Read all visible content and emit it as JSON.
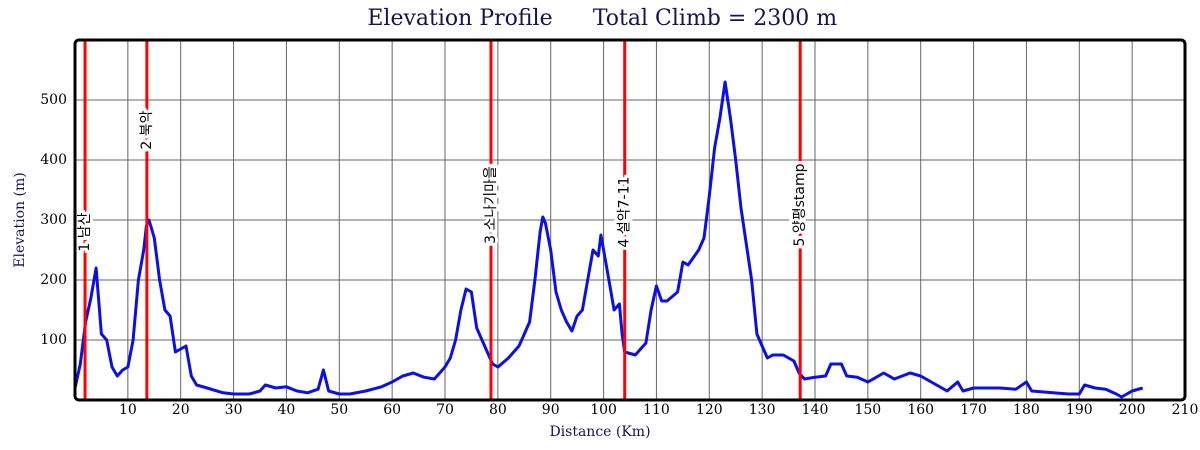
{
  "chart_data": {
    "type": "line",
    "title": "Elevation Profile",
    "subtitle": "Total Climb = 2300 m",
    "x_label": "Distance (Km)",
    "y_label": "Elevation (m)",
    "color": "#0a10e6",
    "marker_color": "#ff0000",
    "grid": true,
    "xlim": [
      0,
      210
    ],
    "ylim": [
      0,
      600
    ],
    "xticks": [
      10,
      20,
      30,
      40,
      50,
      60,
      70,
      80,
      90,
      100,
      110,
      120,
      130,
      140,
      150,
      160,
      170,
      180,
      190,
      200,
      210
    ],
    "yticks": [
      100,
      200,
      300,
      400,
      500
    ],
    "markers": [
      {
        "x": 1.9,
        "label": "1 남산"
      },
      {
        "x": 13.6,
        "label": "2 북악"
      },
      {
        "x": 78.7,
        "label": "3 소나기마을"
      },
      {
        "x": 104,
        "label": "4 설악7-11"
      },
      {
        "x": 137.2,
        "label": "5 양평stamp"
      }
    ],
    "x": [
      0,
      1,
      2,
      3,
      4,
      5,
      6,
      7,
      8,
      9,
      10,
      11,
      12,
      13,
      13.5,
      14,
      15,
      16,
      17,
      18,
      19,
      20,
      21,
      22,
      23,
      25,
      28,
      30,
      33,
      35,
      36,
      38,
      40,
      42,
      44,
      46,
      47,
      48,
      50,
      52,
      55,
      58,
      60,
      62,
      64,
      66,
      68,
      70,
      71,
      72,
      73,
      74,
      75,
      76,
      77,
      78,
      79,
      80,
      82,
      84,
      86,
      87,
      88,
      88.5,
      89,
      90,
      91,
      92,
      93,
      94,
      95,
      96,
      97,
      98,
      99,
      99.5,
      100,
      101,
      102,
      103,
      103.5,
      104,
      106,
      108,
      109,
      110,
      111,
      112,
      114,
      115,
      116,
      118,
      119,
      120,
      121,
      122,
      123,
      124,
      125,
      126,
      127,
      128,
      129,
      130,
      131,
      132,
      134,
      136,
      137,
      138,
      140,
      142,
      143,
      145,
      146,
      148,
      150,
      152,
      153,
      155,
      158,
      160,
      162,
      164,
      165,
      167,
      168,
      170,
      175,
      178,
      180,
      181,
      185,
      188,
      190,
      191,
      193,
      195,
      197,
      198,
      200,
      202
    ],
    "values": [
      20,
      60,
      130,
      170,
      220,
      110,
      100,
      55,
      40,
      50,
      55,
      100,
      200,
      250,
      290,
      300,
      270,
      200,
      150,
      140,
      80,
      85,
      90,
      40,
      25,
      20,
      12,
      10,
      10,
      15,
      25,
      20,
      22,
      15,
      12,
      18,
      50,
      15,
      10,
      10,
      15,
      22,
      30,
      40,
      45,
      38,
      35,
      55,
      70,
      100,
      150,
      185,
      180,
      120,
      100,
      80,
      60,
      55,
      70,
      90,
      130,
      200,
      280,
      305,
      295,
      250,
      180,
      150,
      130,
      115,
      140,
      150,
      200,
      250,
      240,
      275,
      250,
      200,
      150,
      160,
      110,
      80,
      75,
      95,
      150,
      190,
      165,
      165,
      180,
      230,
      225,
      250,
      270,
      340,
      420,
      470,
      530,
      470,
      400,
      320,
      260,
      200,
      110,
      90,
      70,
      75,
      75,
      65,
      45,
      35,
      38,
      40,
      60,
      60,
      40,
      38,
      30,
      40,
      45,
      35,
      45,
      40,
      30,
      20,
      15,
      30,
      15,
      20,
      20,
      18,
      30,
      15,
      12,
      10,
      10,
      25,
      20,
      18,
      10,
      5,
      15,
      20
    ]
  }
}
